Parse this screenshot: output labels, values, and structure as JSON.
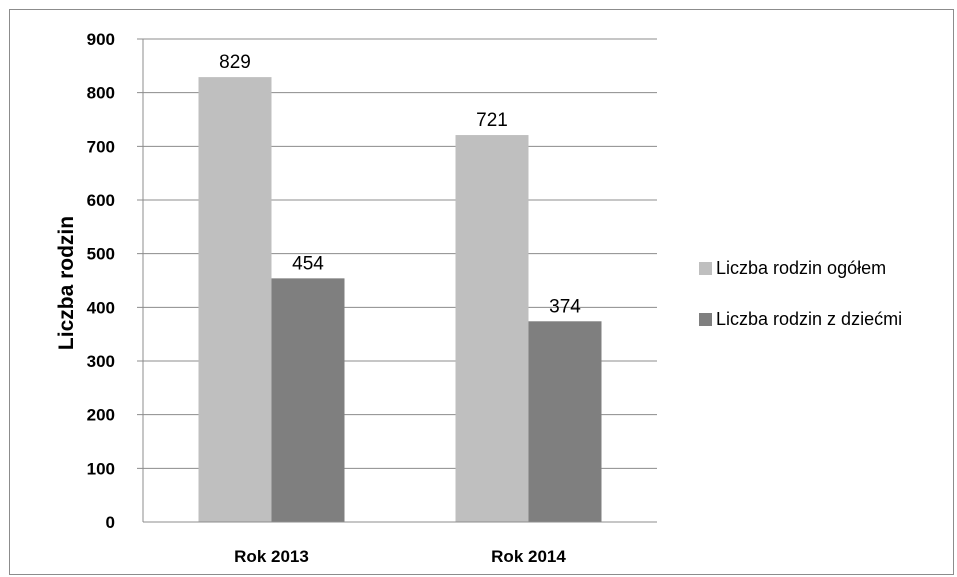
{
  "chart_data": {
    "type": "bar",
    "categories": [
      "Rok 2013",
      "Rok 2014"
    ],
    "series": [
      {
        "name": "Liczba rodzin ogółem",
        "values": [
          829,
          721
        ],
        "color": "#bfbfbf"
      },
      {
        "name": "Liczba rodzin z dziećmi",
        "values": [
          454,
          374
        ],
        "color": "#7f7f7f"
      }
    ],
    "title": "",
    "xlabel": "",
    "ylabel": "Liczba rodzin",
    "ylim": [
      0,
      900
    ],
    "yticks": [
      0,
      100,
      200,
      300,
      400,
      500,
      600,
      700,
      800,
      900
    ],
    "grid": true,
    "legend": "right",
    "data_labels": true
  }
}
